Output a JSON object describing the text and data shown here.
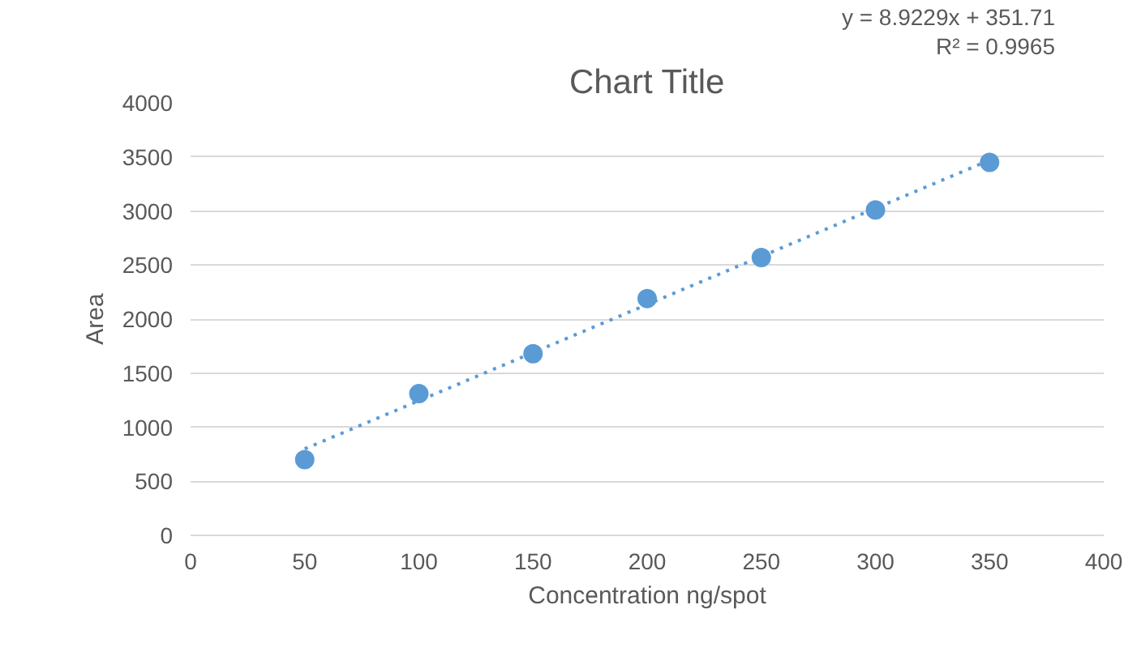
{
  "chart_data": {
    "type": "scatter",
    "title": "Chart Title",
    "xlabel": "Concentration ng/spot",
    "ylabel": "Area",
    "x": [
      50,
      100,
      150,
      200,
      250,
      300,
      350
    ],
    "series": [
      {
        "color": "#5b9bd5",
        "values": [
          700,
          1310,
          1680,
          2190,
          2570,
          3010,
          3450
        ],
        "marker": "circle"
      },
      {
        "type": "line",
        "color": "#5b9bd5",
        "x": [
          50,
          350
        ],
        "values": [
          800,
          3470
        ],
        "line_style": "dotted",
        "marker": "none"
      }
    ],
    "xlim": [
      0,
      400
    ],
    "xticks": [
      0,
      50,
      100,
      150,
      200,
      250,
      300,
      350,
      400
    ],
    "ylim": [
      0,
      4000
    ],
    "yticks": [
      0,
      500,
      1000,
      1500,
      2000,
      2500,
      3000,
      3500,
      4000
    ],
    "grid": "y",
    "annotations": [
      "y = 8.9229x + 351.71",
      "R² = 0.9965"
    ]
  }
}
